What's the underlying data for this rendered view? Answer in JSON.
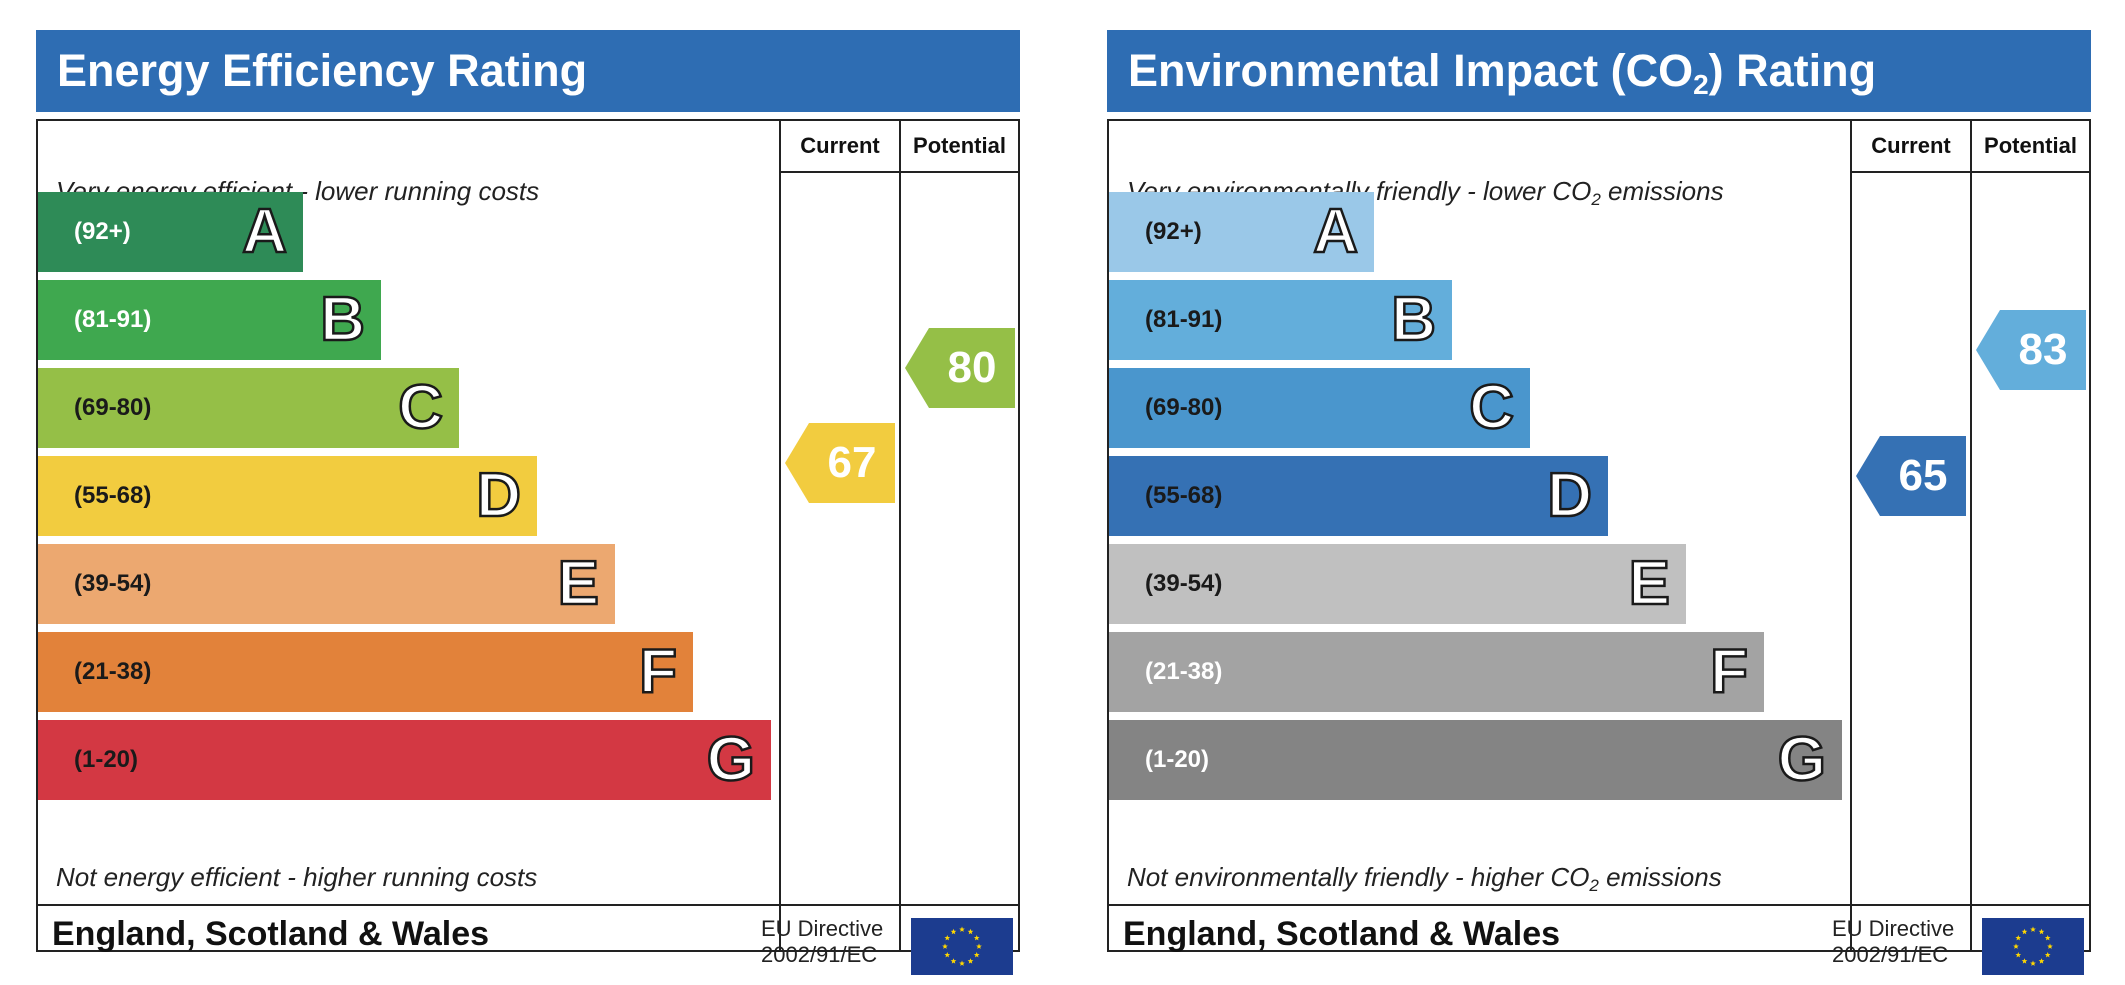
{
  "chart_data": [
    {
      "type": "bar",
      "title": "Energy Efficiency Rating",
      "top_label": "Very energy efficient - lower running costs",
      "bottom_label": "Not energy efficient - higher running costs",
      "columns": [
        "Current",
        "Potential"
      ],
      "bands": [
        {
          "letter": "A",
          "range": "(92+)",
          "color": "#2e8b57",
          "text_color": "#ffffff"
        },
        {
          "letter": "B",
          "range": "(81-91)",
          "color": "#3fa84f",
          "text_color": "#ffffff"
        },
        {
          "letter": "C",
          "range": "(69-80)",
          "color": "#95bf47",
          "text_color": "#1a1a1a"
        },
        {
          "letter": "D",
          "range": "(55-68)",
          "color": "#f2cc3f",
          "text_color": "#1a1a1a"
        },
        {
          "letter": "E",
          "range": "(39-54)",
          "color": "#eca870",
          "text_color": "#1a1a1a"
        },
        {
          "letter": "F",
          "range": "(21-38)",
          "color": "#e2823a",
          "text_color": "#1a1a1a"
        },
        {
          "letter": "G",
          "range": "(1-20)",
          "color": "#d33843",
          "text_color": "#1a1a1a"
        }
      ],
      "current": {
        "value": 67,
        "color": "#f2cc3f"
      },
      "potential": {
        "value": 80,
        "color": "#95bf47"
      },
      "footer": {
        "region": "England, Scotland & Wales",
        "directive_line1": "EU Directive",
        "directive_line2": "2002/91/EC"
      }
    },
    {
      "type": "bar",
      "title": "Environmental Impact (CO",
      "title_sub": "2",
      "title_end": ") Rating",
      "top_label": "Very environmentally friendly - lower CO",
      "top_label_sub": "2",
      "top_label_end": " emissions",
      "bottom_label": "Not environmentally friendly - higher CO",
      "bottom_label_sub": "2",
      "bottom_label_end": " emissions",
      "columns": [
        "Current",
        "Potential"
      ],
      "bands": [
        {
          "letter": "A",
          "range": "(92+)",
          "color": "#9ac8e8",
          "text_color": "#1a1a1a"
        },
        {
          "letter": "B",
          "range": "(81-91)",
          "color": "#63aedb",
          "text_color": "#1a1a1a"
        },
        {
          "letter": "C",
          "range": "(69-80)",
          "color": "#4a96cd",
          "text_color": "#1a1a1a"
        },
        {
          "letter": "D",
          "range": "(55-68)",
          "color": "#3571b4",
          "text_color": "#1a1a1a"
        },
        {
          "letter": "E",
          "range": "(39-54)",
          "color": "#c0c0c0",
          "text_color": "#1a1a1a"
        },
        {
          "letter": "F",
          "range": "(21-38)",
          "color": "#a3a3a3",
          "text_color": "#ffffff"
        },
        {
          "letter": "G",
          "range": "(1-20)",
          "color": "#848484",
          "text_color": "#ffffff"
        }
      ],
      "current": {
        "value": 65,
        "color": "#3571b4"
      },
      "potential": {
        "value": 83,
        "color": "#63aedb"
      },
      "footer": {
        "region": "England, Scotland & Wales",
        "directive_line1": "EU Directive",
        "directive_line2": "2002/91/EC"
      }
    }
  ]
}
